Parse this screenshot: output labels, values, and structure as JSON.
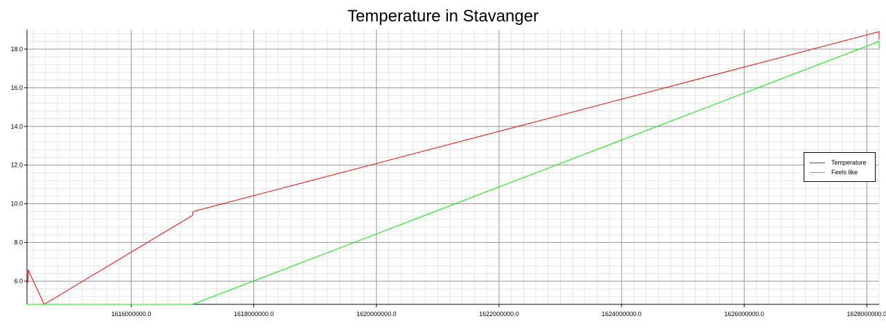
{
  "chart_data": {
    "type": "line",
    "title": "Temperature in Stavanger",
    "xlabel": "",
    "ylabel": "",
    "xlim": [
      1614300000,
      1628200000
    ],
    "ylim": [
      4.8,
      19.0
    ],
    "grid": true,
    "legend_position": "right",
    "x_ticks": [
      1616000000,
      1618000000,
      1620000000,
      1622000000,
      1624000000,
      1626000000,
      1628000000
    ],
    "x_tick_labels": [
      "1616000000.0",
      "1618000000.0",
      "1620000000.0",
      "1622000000.0",
      "1624000000.0",
      "1626000000.0",
      "1628000000.0"
    ],
    "y_ticks": [
      6,
      8,
      10,
      12,
      14,
      16,
      18
    ],
    "y_tick_labels": [
      "6.0",
      "8.0",
      "10.0",
      "12.0",
      "14.0",
      "16.0",
      "18.0"
    ],
    "series": [
      {
        "name": "Temperature",
        "color": "#ff0000",
        "x": [
          1614310000,
          1614320000,
          1614330000,
          1614580000,
          1617000000,
          1617010000,
          1628200000,
          1628200000
        ],
        "y": [
          5.9,
          6.6,
          6.5,
          4.8,
          9.4,
          9.6,
          18.9,
          18.5
        ]
      },
      {
        "name": "Feels like",
        "color": "#00ee00",
        "x": [
          1614300000,
          1617000000,
          1628200000,
          1628200000
        ],
        "y": [
          4.8,
          4.8,
          18.4,
          18.0
        ]
      }
    ]
  }
}
